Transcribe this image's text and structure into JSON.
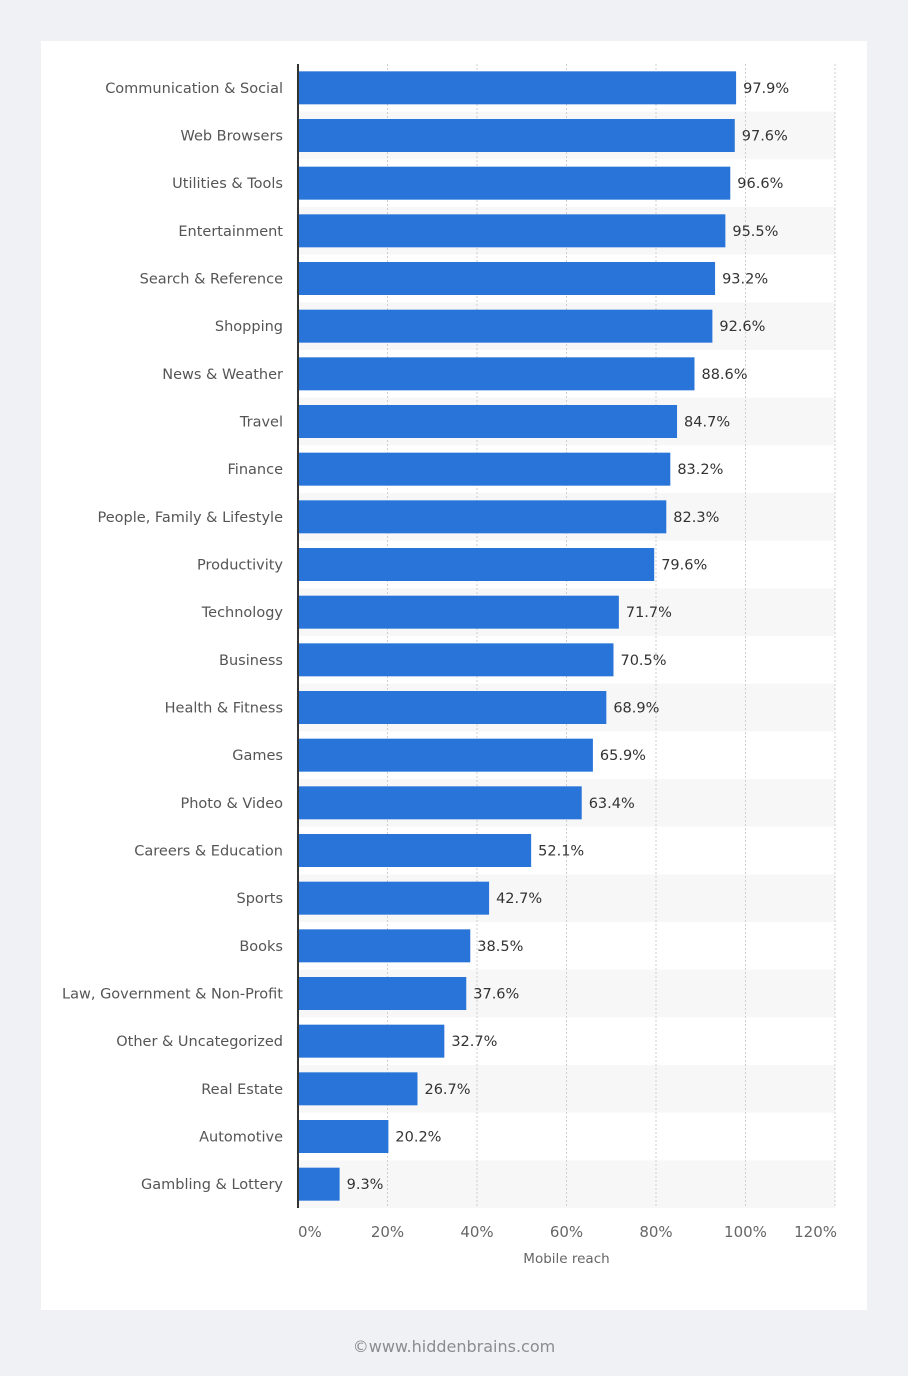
{
  "chart_data": {
    "type": "bar",
    "orientation": "horizontal",
    "title": "",
    "xlabel": "Mobile reach",
    "ylabel": "",
    "xlim": [
      0,
      120
    ],
    "grid": true,
    "categories": [
      "Communication & Social",
      "Web Browsers",
      "Utilities & Tools",
      "Entertainment",
      "Search & Reference",
      "Shopping",
      "News & Weather",
      "Travel",
      "Finance",
      "People, Family & Lifestyle",
      "Productivity",
      "Technology",
      "Business",
      "Health & Fitness",
      "Games",
      "Photo & Video",
      "Careers & Education",
      "Sports",
      "Books",
      "Law, Government & Non-Profit",
      "Other & Uncategorized",
      "Real Estate",
      "Automotive",
      "Gambling & Lottery"
    ],
    "values": [
      97.9,
      97.6,
      96.6,
      95.5,
      93.2,
      92.6,
      88.6,
      84.7,
      83.2,
      82.3,
      79.6,
      71.7,
      70.5,
      68.9,
      65.9,
      63.4,
      52.1,
      42.7,
      38.5,
      37.6,
      32.7,
      26.7,
      20.2,
      9.3
    ],
    "value_labels": [
      "97.9%",
      "97.6%",
      "96.6%",
      "95.5%",
      "93.2%",
      "92.6%",
      "88.6%",
      "84.7%",
      "83.2%",
      "82.3%",
      "79.6%",
      "71.7%",
      "70.5%",
      "68.9%",
      "65.9%",
      "63.4%",
      "52.1%",
      "42.7%",
      "38.5%",
      "37.6%",
      "32.7%",
      "26.7%",
      "20.2%",
      "9.3%"
    ],
    "x_ticks": [
      0,
      20,
      40,
      60,
      80,
      100,
      120
    ],
    "x_tick_labels": [
      "0%",
      "20%",
      "40%",
      "60%",
      "80%",
      "100%",
      "120%"
    ],
    "colors": {
      "bar": "#2874d9",
      "band": "#f7f7f8",
      "grid": "#cfcfd3",
      "axis": "#333333",
      "label": "#555555",
      "value_label": "#333333"
    }
  },
  "footer": {
    "credit": "©www.hiddenbrains.com"
  }
}
